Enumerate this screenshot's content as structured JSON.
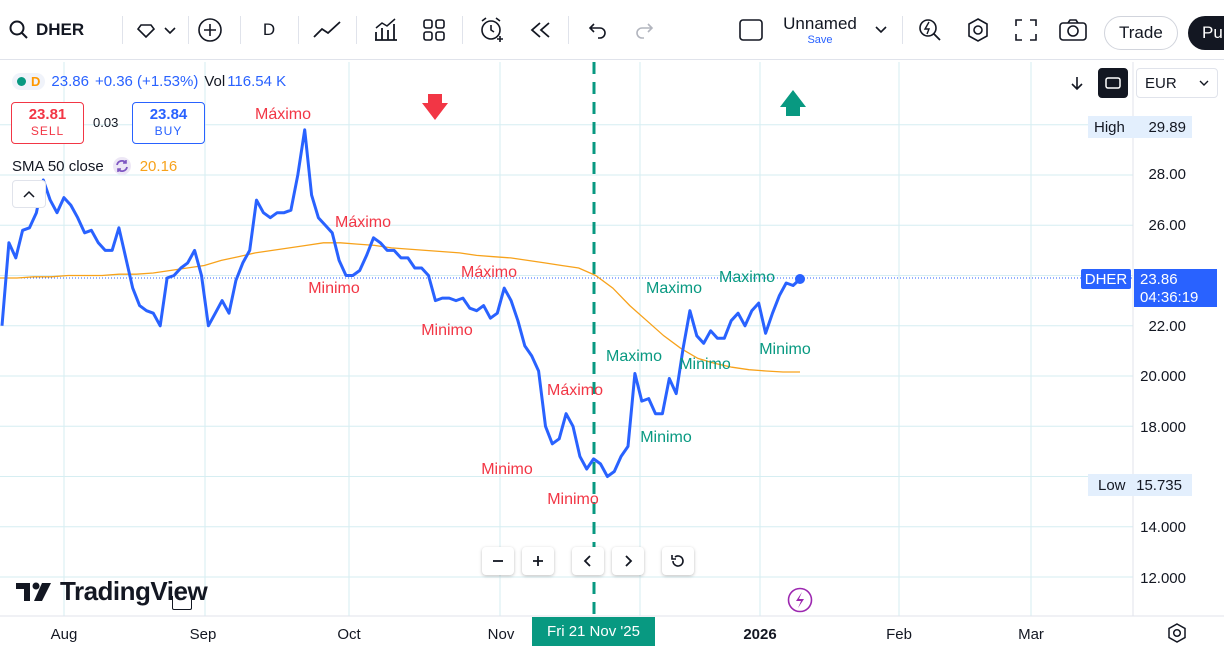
{
  "toolbar": {
    "symbol": "DHER",
    "interval": "D",
    "layout_name": "Unnamed",
    "layout_sub": "Save",
    "trade_label": "Trade",
    "publish_label": "Pu"
  },
  "legend": {
    "price": "23.86",
    "change": "+0.36 (+1.53%)",
    "vol_label": "Vol",
    "vol_value": "116.54 K",
    "sell_price": "23.81",
    "sell_label": "SELL",
    "spread": "0.03",
    "buy_price": "23.84",
    "buy_label": "BUY",
    "sma_label": "SMA 50 close",
    "sma_value": "20.16",
    "source_letter": "D"
  },
  "price_scale": {
    "currency": "EUR",
    "high_label": "High",
    "high_value": "29.89",
    "low_label": "Low",
    "low_value": "15.735",
    "symbol_tag": "DHER",
    "last_price": "23.86",
    "countdown": "04:36:19",
    "ticks": [
      "28.00",
      "26.00",
      "22.00",
      "20.000",
      "18.000",
      "14.000",
      "12.000"
    ]
  },
  "time_scale": {
    "labels": [
      "Aug",
      "Sep",
      "Oct",
      "Nov",
      "2026",
      "Feb",
      "Mar"
    ],
    "crosshair_label": "Fri 21 Nov '25"
  },
  "branding": {
    "logo_text": "TradingView"
  },
  "colors": {
    "price_line": "#2962ff",
    "sma_line": "#f7a21b",
    "crosshair": "#089981",
    "sell": "#f23645",
    "buy": "#2962ff",
    "bear_label": "#f23645",
    "bull_label": "#089981"
  },
  "chart_data": {
    "type": "line",
    "title": "",
    "ylim": [
      11.5,
      31.5
    ],
    "series": [
      {
        "name": "DHER",
        "values": [
          22.0,
          25.3,
          24.7,
          25.8,
          25.9,
          26.5,
          27.8,
          27.0,
          26.5,
          27.1,
          26.8,
          26.3,
          25.7,
          25.8,
          25.3,
          25.0,
          25.0,
          25.9,
          24.7,
          23.5,
          22.8,
          22.6,
          22.5,
          22.0,
          23.9,
          24.0,
          24.3,
          24.5,
          25.0,
          24.0,
          22.0,
          22.5,
          23.0,
          22.5,
          23.8,
          24.5,
          25.0,
          27.0,
          26.5,
          26.3,
          26.5,
          26.5,
          26.6,
          28.0,
          29.8,
          27.2,
          26.3,
          26.0,
          25.7,
          24.6,
          24.0,
          24.0,
          24.2,
          24.8,
          25.5,
          25.3,
          25.0,
          25.0,
          24.7,
          24.7,
          24.3,
          24.3,
          24.0,
          23.0,
          23.1,
          23.1,
          23.0,
          23.1,
          22.7,
          22.6,
          22.8,
          22.3,
          22.5,
          23.5,
          23.0,
          22.2,
          21.2,
          20.8,
          20.2,
          18.0,
          17.3,
          17.5,
          18.5,
          18.0,
          16.8,
          16.3,
          16.7,
          16.5,
          16.0,
          16.2,
          16.8,
          17.2,
          20.1,
          19.0,
          19.1,
          18.5,
          18.5,
          19.9,
          19.3,
          21.1,
          22.6,
          21.6,
          21.3,
          21.8,
          21.5,
          21.5,
          22.2,
          22.5,
          22.0,
          22.6,
          22.9,
          21.7,
          22.5,
          23.2,
          23.7,
          23.6,
          23.86
        ]
      },
      {
        "name": "SMA 50 close",
        "values": [
          23.9,
          23.9,
          23.95,
          23.95,
          24.0,
          24.0,
          24.0,
          24.05,
          24.05,
          24.1,
          24.2,
          24.3,
          24.4,
          24.6,
          24.75,
          24.9,
          25.0,
          25.1,
          25.2,
          25.3,
          25.3,
          25.25,
          25.2,
          25.1,
          25.05,
          25.0,
          24.95,
          24.9,
          24.8,
          24.75,
          24.7,
          24.6,
          24.5,
          24.4,
          24.3,
          24.0,
          23.5,
          22.8,
          22.2,
          21.6,
          21.1,
          20.7,
          20.5,
          20.35,
          20.25,
          20.2,
          20.16,
          20.16
        ]
      }
    ],
    "annotations": [
      {
        "text": "Máximo",
        "color": "bear"
      },
      {
        "text": "Máximo",
        "color": "bear"
      },
      {
        "text": "Minimo",
        "color": "bear"
      },
      {
        "text": "Máximo",
        "color": "bear"
      },
      {
        "text": "Minimo",
        "color": "bear"
      },
      {
        "text": "Máximo",
        "color": "bear"
      },
      {
        "text": "Minimo",
        "color": "bear"
      },
      {
        "text": "Minimo",
        "color": "bear"
      },
      {
        "text": "Maximo",
        "color": "bull"
      },
      {
        "text": "Maximo",
        "color": "bull"
      },
      {
        "text": "Minimo",
        "color": "bull"
      },
      {
        "text": "Maximo",
        "color": "bull"
      },
      {
        "text": "Minimo",
        "color": "bull"
      },
      {
        "text": "Minimo",
        "color": "bull"
      }
    ]
  }
}
